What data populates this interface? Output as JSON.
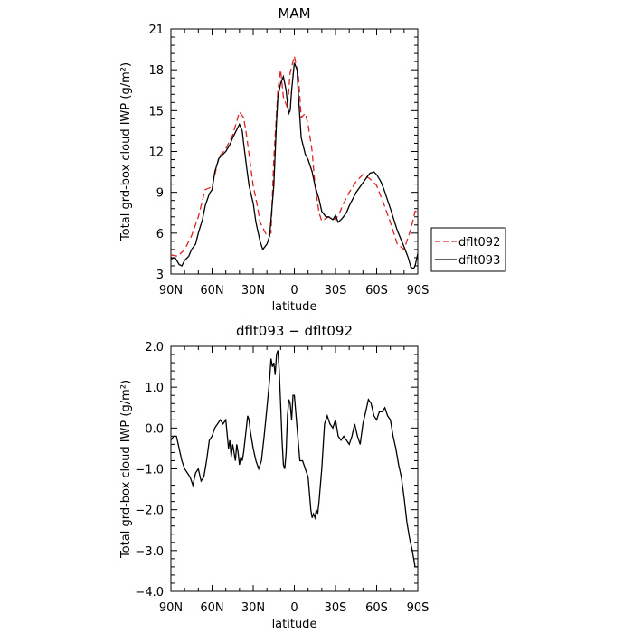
{
  "chart_data": [
    {
      "type": "line",
      "title": "MAM",
      "xlabel": "latitude",
      "ylabel": "Total grd-box cloud IWP (g/m²)",
      "x_ticks": [
        90,
        60,
        30,
        0,
        -30,
        -60,
        -90
      ],
      "x_tick_labels": [
        "90N",
        "60N",
        "30N",
        "0",
        "30S",
        "60S",
        "90S"
      ],
      "xlim": [
        90,
        -90
      ],
      "ylim": [
        3,
        21
      ],
      "y_ticks": [
        3,
        6,
        9,
        12,
        15,
        18,
        21
      ],
      "y_tick_labels": [
        "3",
        "6",
        "9",
        "12",
        "15",
        "18",
        "21"
      ],
      "legend_position": "right-bottom-outside",
      "series": [
        {
          "name": "dflt092",
          "color": "#dd2222",
          "dash": "dashed",
          "x": [
            90,
            85,
            80,
            75,
            70,
            65,
            60,
            55,
            50,
            45,
            40,
            37,
            35,
            30,
            27,
            25,
            22,
            20,
            17,
            15,
            12,
            10,
            8,
            5,
            3,
            0,
            -3,
            -5,
            -8,
            -10,
            -13,
            -15,
            -18,
            -20,
            -25,
            -30,
            -33,
            -35,
            -40,
            -45,
            -50,
            -55,
            -60,
            -65,
            -70,
            -75,
            -80,
            -85,
            -88,
            -90
          ],
          "y": [
            4.4,
            4.3,
            4.8,
            5.8,
            7.2,
            9.2,
            9.4,
            11.6,
            12.2,
            13.2,
            14.9,
            14.5,
            13.3,
            9.5,
            8.0,
            6.8,
            6.2,
            5.8,
            6.0,
            11.5,
            16.5,
            18.0,
            16.0,
            15.2,
            17.8,
            19.0,
            17.5,
            14.5,
            14.8,
            14.0,
            12.0,
            9.5,
            7.5,
            6.9,
            7.2,
            7.0,
            7.5,
            8.0,
            9.0,
            9.8,
            10.3,
            10.0,
            9.5,
            8.2,
            6.8,
            5.2,
            4.8,
            6.3,
            7.6,
            7.6
          ]
        },
        {
          "name": "dflt093",
          "color": "#000000",
          "dash": "solid",
          "x": [
            90,
            87,
            84,
            82,
            80,
            77,
            75,
            72,
            70,
            67,
            65,
            62,
            60,
            58,
            55,
            52,
            50,
            47,
            45,
            42,
            40,
            38,
            37,
            35,
            33,
            30,
            28,
            25,
            23,
            20,
            18,
            15,
            13,
            12,
            10,
            8,
            6,
            5,
            4,
            3,
            2,
            0,
            -2,
            -3,
            -5,
            -8,
            -10,
            -13,
            -15,
            -18,
            -20,
            -23,
            -25,
            -28,
            -30,
            -32,
            -35,
            -38,
            -40,
            -45,
            -50,
            -55,
            -58,
            -60,
            -63,
            -65,
            -70,
            -75,
            -80,
            -83,
            -85,
            -87,
            -88,
            -90
          ],
          "y": [
            4.1,
            4.2,
            3.7,
            3.6,
            4.0,
            4.3,
            4.8,
            5.2,
            6.0,
            7.0,
            8.0,
            8.9,
            9.2,
            10.5,
            11.5,
            11.8,
            12.0,
            12.5,
            13.0,
            13.6,
            14.0,
            13.5,
            12.6,
            11.0,
            9.5,
            8.2,
            6.8,
            5.4,
            4.8,
            5.2,
            5.8,
            9.5,
            14.2,
            16.0,
            17.0,
            17.5,
            16.5,
            15.5,
            14.8,
            15.0,
            16.5,
            18.5,
            18.0,
            16.0,
            13.0,
            11.8,
            11.4,
            10.5,
            9.5,
            8.5,
            7.6,
            7.2,
            7.2,
            7.0,
            7.3,
            6.8,
            7.1,
            7.5,
            8.0,
            9.0,
            9.7,
            10.4,
            10.5,
            10.3,
            9.8,
            9.3,
            7.8,
            6.2,
            5.0,
            4.2,
            3.5,
            3.4,
            3.6,
            4.5
          ]
        }
      ]
    },
    {
      "type": "line",
      "title": "dflt093 − dflt092",
      "xlabel": "latitude",
      "ylabel": "Total grd-box cloud IWP (g/m²)",
      "x_ticks": [
        90,
        60,
        30,
        0,
        -30,
        -60,
        -90
      ],
      "x_tick_labels": [
        "90N",
        "60N",
        "30N",
        "0",
        "30S",
        "60S",
        "90S"
      ],
      "xlim": [
        90,
        -90
      ],
      "ylim": [
        -4.0,
        2.0
      ],
      "y_ticks": [
        -4,
        -3,
        -2,
        -1,
        0,
        1,
        2
      ],
      "y_tick_labels": [
        "−4.0",
        "−3.0",
        "−2.0",
        "−1.0",
        "0.0",
        "1.0",
        "2.0"
      ],
      "series": [
        {
          "name": "",
          "color": "#000000",
          "dash": "solid",
          "x": [
            90,
            88,
            86,
            84,
            82,
            80,
            78,
            76,
            74,
            72,
            70,
            68,
            66,
            64,
            62,
            60,
            58,
            56,
            54,
            52,
            50,
            48,
            47,
            46,
            45,
            44,
            43,
            42,
            41,
            40,
            39,
            38,
            37,
            36,
            35,
            34,
            33,
            32,
            31,
            30,
            28,
            26,
            24,
            22,
            20,
            18,
            17,
            16,
            15,
            14,
            13,
            12,
            11,
            10,
            9,
            8,
            7,
            6,
            5,
            4,
            3,
            2,
            1,
            0,
            -2,
            -4,
            -6,
            -8,
            -10,
            -12,
            -13,
            -14,
            -15,
            -16,
            -17,
            -18,
            -20,
            -22,
            -24,
            -26,
            -28,
            -30,
            -32,
            -34,
            -36,
            -38,
            -40,
            -42,
            -44,
            -46,
            -48,
            -50,
            -52,
            -54,
            -56,
            -58,
            -60,
            -62,
            -64,
            -66,
            -68,
            -70,
            -72,
            -74,
            -76,
            -78,
            -80,
            -82,
            -84,
            -86,
            -88,
            -90
          ],
          "y": [
            -0.3,
            -0.2,
            -0.2,
            -0.5,
            -0.8,
            -1.0,
            -1.1,
            -1.2,
            -1.4,
            -1.1,
            -1.0,
            -1.3,
            -1.2,
            -0.8,
            -0.3,
            -0.2,
            0.0,
            0.1,
            0.2,
            0.1,
            0.2,
            -0.5,
            -0.3,
            -0.7,
            -0.4,
            -0.6,
            -0.8,
            -0.4,
            -0.6,
            -0.9,
            -0.7,
            -0.8,
            -0.6,
            -0.3,
            0.0,
            0.3,
            0.2,
            -0.1,
            -0.3,
            -0.5,
            -0.8,
            -1.0,
            -0.8,
            -0.2,
            0.5,
            1.2,
            1.7,
            1.5,
            1.6,
            1.3,
            1.8,
            1.9,
            1.4,
            0.6,
            -0.3,
            -0.9,
            -1.0,
            -0.6,
            0.3,
            0.7,
            0.6,
            0.2,
            0.8,
            0.8,
            0.0,
            -0.8,
            -0.8,
            -1.0,
            -1.2,
            -2.0,
            -2.2,
            -2.1,
            -2.2,
            -2.0,
            -2.1,
            -1.8,
            -1.0,
            0.1,
            0.3,
            0.1,
            0.0,
            0.2,
            -0.2,
            -0.3,
            -0.2,
            -0.3,
            -0.4,
            -0.2,
            0.1,
            -0.2,
            -0.4,
            0.1,
            0.4,
            0.7,
            0.6,
            0.3,
            0.2,
            0.4,
            0.4,
            0.5,
            0.3,
            0.2,
            -0.2,
            -0.5,
            -0.9,
            -1.2,
            -1.7,
            -2.3,
            -2.7,
            -3.0,
            -3.4,
            -3.4
          ]
        }
      ]
    }
  ]
}
